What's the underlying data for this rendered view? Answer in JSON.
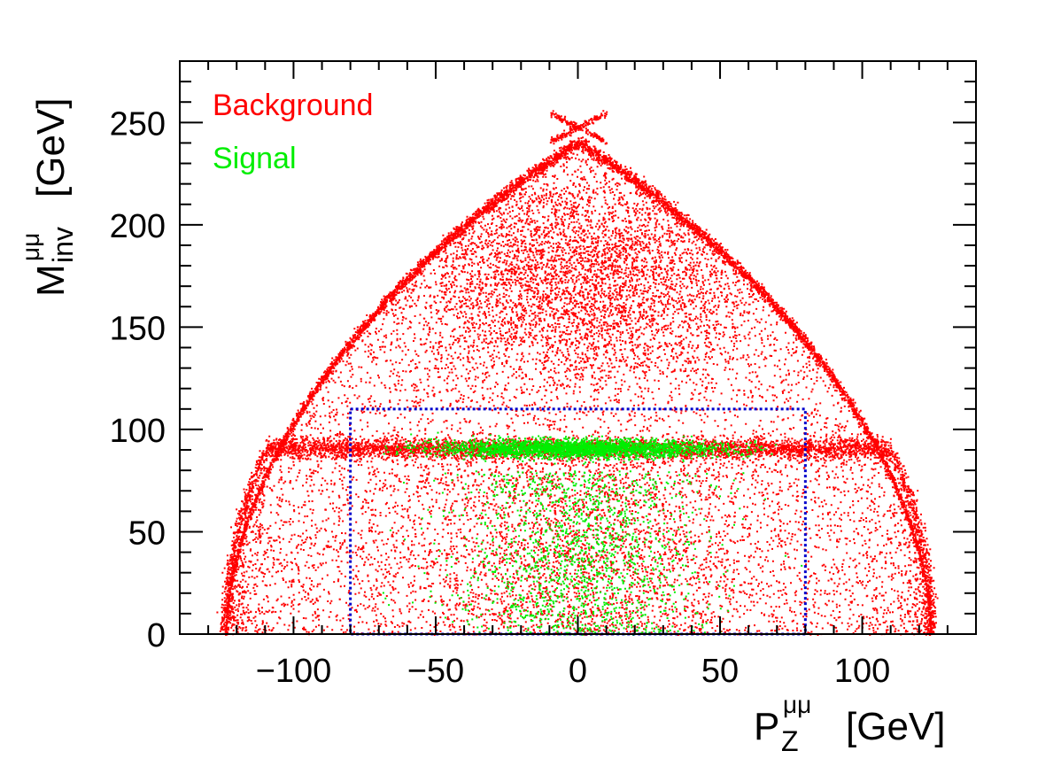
{
  "chart_data": {
    "type": "scatter",
    "title": "",
    "x_axis": {
      "label_main": "P",
      "label_sub": "Z",
      "label_sup": "μμ",
      "label_unit": "[GeV]",
      "range": [
        -140,
        140
      ],
      "ticks": [
        -100,
        -50,
        0,
        50,
        100
      ],
      "tick_labels": [
        "−100",
        "−50",
        "0",
        "50",
        "100"
      ]
    },
    "y_axis": {
      "label_main": "M",
      "label_sub": "inv",
      "label_sup": "μμ",
      "label_unit": "[GeV]",
      "range": [
        0,
        280
      ],
      "ticks": [
        0,
        50,
        100,
        150,
        200,
        250
      ],
      "tick_labels": [
        "0",
        "50",
        "100",
        "150",
        "200",
        "250"
      ]
    },
    "grid": false,
    "legend_position": "top-left",
    "series": [
      {
        "name": "Background",
        "color": "#ff0000",
        "distribution": {
          "kinematic_edge_peak_mass": 248,
          "kinematic_edge_max_pz": 124,
          "z_peak_mass": 91,
          "z_peak_pz_range": [
            -110,
            110
          ],
          "upper_cluster_center": [
            0,
            175
          ],
          "upper_cluster_spread": [
            35,
            30
          ]
        }
      },
      {
        "name": "Signal",
        "color": "#00ee00",
        "distribution": {
          "z_peak_mass": 91,
          "z_peak_pz_range": [
            -60,
            60
          ],
          "low_mass_tail_max": 80
        }
      }
    ],
    "selection_box": {
      "x_range": [
        -80,
        80
      ],
      "y_range": [
        0,
        110
      ],
      "color": "#0000cc",
      "style": "dotted"
    }
  }
}
